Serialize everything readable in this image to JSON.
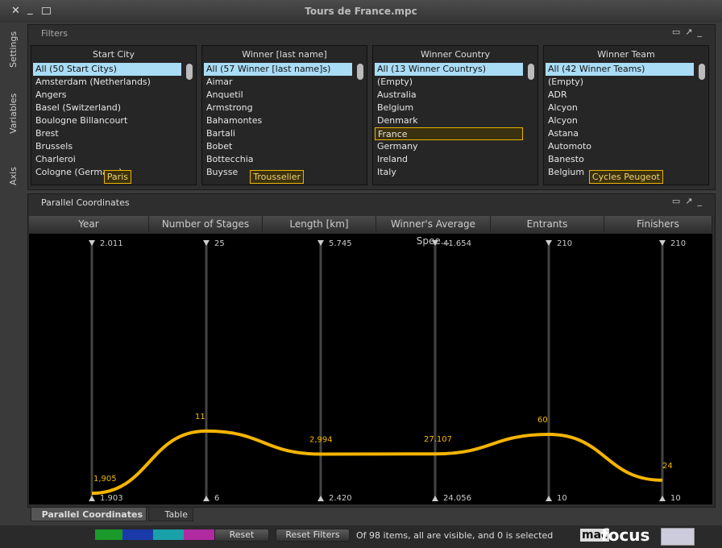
{
  "window": {
    "title": "Tours de France.mpc"
  },
  "side_tabs": [
    "Settings",
    "Variables",
    "Axis"
  ],
  "filters": {
    "title": "Filters",
    "lists": [
      {
        "header": "Start City",
        "items": [
          "All (50 Start Citys)",
          "Amsterdam (Netherlands)",
          "Angers",
          "Basel (Switzerland)",
          "Boulogne Billancourt",
          "Brest",
          "Brussels",
          "Charleroi",
          "Cologne (Germany)"
        ],
        "tag": "Paris"
      },
      {
        "header": "Winner [last name]",
        "items": [
          "All (57 Winner [last name]s)",
          "Aimar",
          "Anquetil",
          "Armstrong",
          "Bahamontes",
          "Bartali",
          "Bobet",
          "Bottecchia",
          "Buysse"
        ],
        "tag": "Trousselier"
      },
      {
        "header": "Winner Country",
        "items": [
          "All (13 Winner Countrys)",
          "(Empty)",
          "Australia",
          "Belgium",
          "Denmark",
          "France",
          "Germany",
          "Ireland",
          "Italy"
        ],
        "marked": 5
      },
      {
        "header": "Winner Team",
        "items": [
          "All (42 Winner Teams)",
          "(Empty)",
          "ADR",
          "Alcyon",
          "Alcyon",
          "Astana",
          "Automoto",
          "Banesto",
          "Belgium"
        ],
        "tag": "Cycles Peugeot"
      }
    ]
  },
  "parallel": {
    "title": "Parallel Coordinates",
    "axes": [
      {
        "name": "Year",
        "max": {
          "value": 2011,
          "label": "2.011"
        },
        "min": {
          "value": 1903,
          "label": "1.903"
        },
        "selected": {
          "value": 1905,
          "label": "1,905"
        }
      },
      {
        "name": "Number of Stages",
        "max": 25,
        "min": 6,
        "selected": 11
      },
      {
        "name": "Length [km]",
        "max": {
          "value": 5745,
          "label": "5.745"
        },
        "min": {
          "value": 2420,
          "label": "2.420"
        },
        "selected": {
          "value": 2994,
          "label": "2,994"
        }
      },
      {
        "name": "Winner's Average Spee...",
        "max": 41.654,
        "min": 24.056,
        "selected": 27.107
      },
      {
        "name": "Entrants",
        "max": 210,
        "min": 10,
        "selected": 60
      },
      {
        "name": "Finishers",
        "max": 210,
        "min": 10,
        "selected": 24
      }
    ]
  },
  "bottom_tabs": [
    "Parallel Coordinates",
    "Table"
  ],
  "status": {
    "reset": "Reset",
    "reset_filters": "Reset Filters",
    "message": "Of 98 items, all are visible, and 0 is selected",
    "logo_a": "mac",
    "logo_b": "focus"
  }
}
